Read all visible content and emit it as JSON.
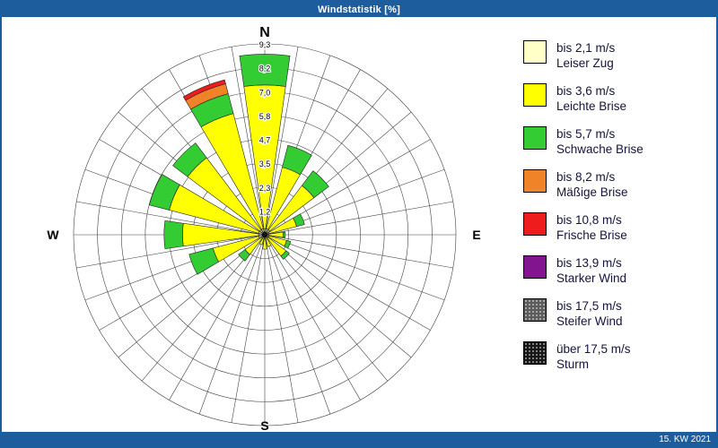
{
  "window": {
    "title": "Windstatistik [%]",
    "footer_right": "15. KW 2021",
    "chrome_color": "#1e5d9d",
    "background": "#ffffff"
  },
  "compass": {
    "n": "N",
    "e": "E",
    "s": "S",
    "w": "W"
  },
  "chart_data": {
    "type": "windrose",
    "units": "%",
    "title": "Windstatistik [%]",
    "period": "15. KW 2021",
    "rmax": 9.3,
    "ring_values": [
      1.2,
      2.3,
      3.5,
      4.7,
      5.8,
      7.0,
      8.2,
      9.3
    ],
    "ring_labels": [
      "1,2",
      "2,3",
      "3,5",
      "4,7",
      "5,8",
      "7,0",
      "8,2",
      "9,3"
    ],
    "spoke_step_deg": 10,
    "sector_width_deg": 16,
    "speed_classes": [
      {
        "label": "bis 2,1 m/s",
        "name": "Leiser Zug",
        "color": "#FFFFC8",
        "speckled": false
      },
      {
        "label": "bis 3,6 m/s",
        "name": "Leichte Brise",
        "color": "#FFFF00",
        "speckled": false
      },
      {
        "label": "bis 5,7 m/s",
        "name": "Schwache Brise",
        "color": "#33CC33",
        "speckled": false
      },
      {
        "label": "bis 8,2 m/s",
        "name": "Mäßige Brise",
        "color": "#F08228",
        "speckled": false
      },
      {
        "label": "bis 10,8 m/s",
        "name": "Frische Brise",
        "color": "#EE1C1C",
        "speckled": false
      },
      {
        "label": "bis 13,9 m/s",
        "name": "Starker Wind",
        "color": "#83148F",
        "speckled": false
      },
      {
        "label": "bis 17,5 m/s",
        "name": "Steifer Wind",
        "color": "#5C5C5C",
        "speckled": true
      },
      {
        "label": "über 17,5 m/s",
        "name": "Sturm",
        "color": "#161616",
        "speckled": true
      }
    ],
    "directions": [
      {
        "dir": "N",
        "deg": 0.0,
        "values": [
          0.3,
          7.0,
          1.5,
          0,
          0,
          0,
          0,
          0
        ]
      },
      {
        "dir": "NNE",
        "deg": 22.5,
        "values": [
          0.3,
          3.1,
          1.1,
          0,
          0,
          0,
          0,
          0
        ]
      },
      {
        "dir": "NE",
        "deg": 45.0,
        "values": [
          0.3,
          2.7,
          0.9,
          0,
          0,
          0,
          0,
          0
        ]
      },
      {
        "dir": "ENE",
        "deg": 67.5,
        "values": [
          0.2,
          1.4,
          0.4,
          0,
          0,
          0,
          0,
          0
        ]
      },
      {
        "dir": "E",
        "deg": 90.0,
        "values": [
          0.2,
          0.7,
          0.1,
          0,
          0,
          0,
          0,
          0
        ]
      },
      {
        "dir": "ESE",
        "deg": 112.5,
        "values": [
          0.2,
          0.9,
          0.2,
          0,
          0,
          0,
          0,
          0
        ]
      },
      {
        "dir": "SE",
        "deg": 135.0,
        "values": [
          0.2,
          1.1,
          0.2,
          0,
          0,
          0,
          0,
          0
        ]
      },
      {
        "dir": "SSE",
        "deg": 157.5,
        "values": [
          0.1,
          0.5,
          0,
          0,
          0,
          0,
          0,
          0
        ]
      },
      {
        "dir": "S",
        "deg": 180.0,
        "values": [
          0.2,
          0.5,
          0,
          0,
          0,
          0,
          0,
          0
        ]
      },
      {
        "dir": "SSW",
        "deg": 202.5,
        "values": [
          0.1,
          0.4,
          0,
          0,
          0,
          0,
          0,
          0
        ]
      },
      {
        "dir": "SW",
        "deg": 225.0,
        "values": [
          0.2,
          1.0,
          0.4,
          0,
          0,
          0,
          0,
          0
        ]
      },
      {
        "dir": "WSW",
        "deg": 247.5,
        "values": [
          0.3,
          2.3,
          1.2,
          0,
          0,
          0,
          0,
          0
        ]
      },
      {
        "dir": "W",
        "deg": 270.0,
        "values": [
          0.3,
          3.7,
          0.9,
          0,
          0,
          0,
          0,
          0
        ]
      },
      {
        "dir": "WNW",
        "deg": 292.5,
        "values": [
          0.3,
          4.5,
          1.0,
          0,
          0,
          0,
          0,
          0
        ]
      },
      {
        "dir": "NW",
        "deg": 315.0,
        "values": [
          0.3,
          4.4,
          0.9,
          0,
          0,
          0,
          0,
          0
        ]
      },
      {
        "dir": "NNW",
        "deg": 337.5,
        "values": [
          0.3,
          5.8,
          1.0,
          0.5,
          0.2,
          0,
          0,
          0
        ]
      }
    ]
  }
}
